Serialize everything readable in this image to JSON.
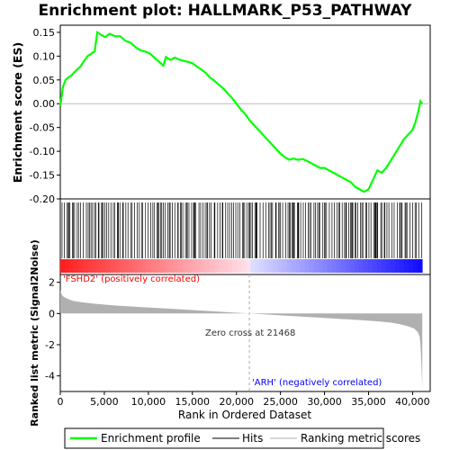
{
  "chart_data": {
    "type": "line",
    "title": "Enrichment plot: HALLMARK_P53_PATHWAY",
    "top_panel": {
      "ylabel": "Enrichment score (ES)",
      "ylim": [
        -0.2,
        0.165
      ],
      "yticks": [
        -0.2,
        -0.15,
        -0.1,
        -0.05,
        0.0,
        0.05,
        0.1,
        0.15
      ],
      "ytick_labels": [
        "-0.20",
        "-0.15",
        "-0.10",
        "-0.05",
        "0.00",
        "0.05",
        "0.10",
        "0.15"
      ],
      "series": [
        {
          "name": "Enrichment profile",
          "color": "#00ff00",
          "x": [
            0,
            300,
            600,
            900,
            1300,
            1800,
            2300,
            2700,
            3100,
            3500,
            3900,
            4200,
            4600,
            5100,
            5600,
            6200,
            6800,
            7400,
            8000,
            8600,
            9100,
            9600,
            10200,
            10800,
            11400,
            11700,
            12000,
            12500,
            13000,
            13500,
            14000,
            14500,
            15000,
            15500,
            16000,
            16500,
            17000,
            17500,
            18000,
            18500,
            19000,
            19500,
            20000,
            20500,
            21000,
            21500,
            22000,
            22500,
            23000,
            23500,
            24000,
            24500,
            25000,
            25500,
            26000,
            26500,
            27000,
            27500,
            28000,
            28500,
            29000,
            29500,
            30000,
            30500,
            31000,
            31500,
            32000,
            32500,
            33000,
            33500,
            34000,
            34500,
            35000,
            35500,
            36000,
            36500,
            37000,
            37500,
            38000,
            38500,
            39000,
            39500,
            40000,
            40300,
            40600,
            40900,
            41100
          ],
          "y": [
            -0.005,
            0.035,
            0.05,
            0.055,
            0.06,
            0.07,
            0.078,
            0.09,
            0.1,
            0.105,
            0.11,
            0.15,
            0.145,
            0.14,
            0.147,
            0.142,
            0.142,
            0.132,
            0.128,
            0.118,
            0.112,
            0.11,
            0.105,
            0.095,
            0.085,
            0.08,
            0.098,
            0.092,
            0.097,
            0.093,
            0.09,
            0.088,
            0.085,
            0.078,
            0.072,
            0.065,
            0.055,
            0.048,
            0.04,
            0.032,
            0.022,
            0.012,
            0.0,
            -0.012,
            -0.022,
            -0.035,
            -0.045,
            -0.055,
            -0.065,
            -0.075,
            -0.085,
            -0.095,
            -0.105,
            -0.112,
            -0.118,
            -0.115,
            -0.118,
            -0.116,
            -0.12,
            -0.125,
            -0.13,
            -0.135,
            -0.135,
            -0.14,
            -0.145,
            -0.15,
            -0.155,
            -0.16,
            -0.165,
            -0.175,
            -0.18,
            -0.185,
            -0.18,
            -0.16,
            -0.14,
            -0.145,
            -0.135,
            -0.12,
            -0.105,
            -0.09,
            -0.075,
            -0.065,
            -0.055,
            -0.04,
            -0.02,
            0.005,
            0.0
          ]
        }
      ]
    },
    "hits_panel": {
      "legend_name": "Hits"
    },
    "bottom_panel": {
      "ylabel": "Ranked list metric (Signal2Noise)",
      "ylim": [
        -5,
        2.5
      ],
      "yticks": [
        -4,
        -2,
        0,
        2
      ],
      "ytick_labels": [
        "-4",
        "-2",
        "0",
        "2"
      ],
      "series_name": "Ranking metric scores",
      "metric_x": [
        0,
        100,
        300,
        600,
        1000,
        1500,
        2500,
        4000,
        6000,
        9000,
        12000,
        15000,
        18000,
        21468,
        25000,
        28000,
        31000,
        34000,
        36000,
        37500,
        38500,
        39500,
        40200,
        40600,
        40800,
        40900,
        41000,
        41100
      ],
      "metric_y": [
        1.5,
        1.3,
        1.1,
        1.0,
        0.9,
        0.8,
        0.72,
        0.62,
        0.52,
        0.42,
        0.32,
        0.22,
        0.12,
        0.0,
        -0.12,
        -0.22,
        -0.32,
        -0.42,
        -0.5,
        -0.58,
        -0.68,
        -0.82,
        -0.98,
        -1.2,
        -1.5,
        -2.0,
        -3.2,
        -4.8
      ]
    },
    "xaxis": {
      "xlabel": "Rank in Ordered Dataset",
      "xlim": [
        0,
        42000
      ],
      "xticks": [
        0,
        5000,
        10000,
        15000,
        20000,
        25000,
        30000,
        35000,
        40000
      ],
      "xtick_labels": [
        "0",
        "5,000",
        "10,000",
        "15,000",
        "20,000",
        "25,000",
        "30,000",
        "35,000",
        "40,000"
      ],
      "n_genes": 41100,
      "zero_cross": 21468
    },
    "annotations": {
      "positive": "'FSHD2' (positively correlated)",
      "zero_cross": "Zero cross at 21468",
      "negative": "'ARH' (negatively correlated)"
    },
    "legend": {
      "placement": "bottom",
      "entries": [
        "Enrichment profile",
        "Hits",
        "Ranking metric scores"
      ]
    },
    "colors": {
      "profile": "#00ff00",
      "positive_text": "#ff0000",
      "negative_text": "#0000ff",
      "metric_fill": "#b0b0b0"
    }
  }
}
